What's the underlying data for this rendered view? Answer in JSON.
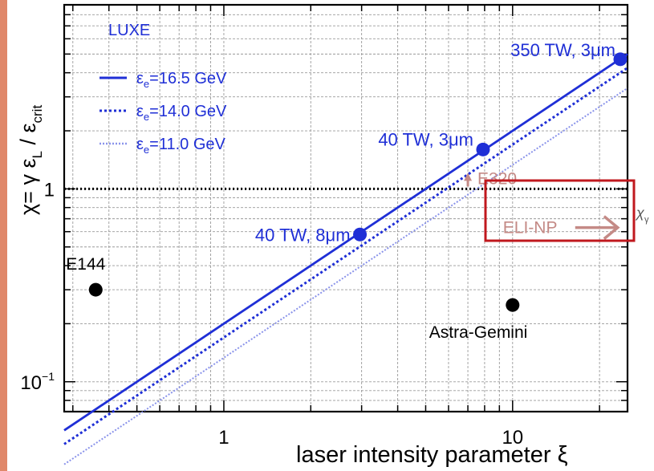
{
  "colors": {
    "frame_left": "#e0886a",
    "series_blue": "#1f2fd6",
    "series_light": "#8a93ea",
    "annotation_rose": "#c48a86",
    "highlight_box": "#c0181e",
    "black": "#000000"
  },
  "chart_data": {
    "type": "line",
    "x_scale": "log",
    "y_scale": "log",
    "xlim": [
      0.28,
      25
    ],
    "ylim": [
      0.07,
      9
    ],
    "grid": true,
    "legend_position": "top-left",
    "xlabel": "laser intensity parameter ξ",
    "ylabel": {
      "main": "χ= γ  ε",
      "sub1": "L",
      "mid": " / ε",
      "sub2": "crit"
    },
    "x_ticks": [
      {
        "value": 1,
        "label": "1"
      },
      {
        "value": 10,
        "label": "10"
      }
    ],
    "y_ticks": [
      {
        "value": 0.1,
        "label": "10",
        "sup": "−1"
      },
      {
        "value": 1,
        "label": "1"
      }
    ],
    "experiment_label": "LUXE",
    "series": [
      {
        "name": "ε_e=16.5 GeV",
        "legend_main": "ε",
        "legend_sub": "e",
        "legend_rest": "=16.5 GeV",
        "style": "solid",
        "color_key": "series_blue",
        "x": [
          0.28,
          25
        ],
        "y": [
          0.056,
          5.0
        ]
      },
      {
        "name": "ε_e=14.0 GeV",
        "legend_main": "ε",
        "legend_sub": "e",
        "legend_rest": "=14.0 GeV",
        "style": "dotted",
        "color_key": "series_blue",
        "x": [
          0.28,
          25
        ],
        "y": [
          0.0475,
          4.24
        ]
      },
      {
        "name": "ε_e=11.0 GeV",
        "legend_main": "ε",
        "legend_sub": "e",
        "legend_rest": "=11.0 GeV",
        "style": "dotted-light",
        "color_key": "series_light",
        "x": [
          0.28,
          25
        ],
        "y": [
          0.0373,
          3.33
        ]
      }
    ],
    "luxe_points": [
      {
        "label": "350 TW, 3μm",
        "x": 23.6,
        "y": 4.7
      },
      {
        "label": "40 TW, 3μm",
        "x": 7.9,
        "y": 1.6
      },
      {
        "label": "40 TW, 8μm",
        "x": 2.96,
        "y": 0.58
      }
    ],
    "other_experiments": [
      {
        "label": "E144",
        "x": 0.36,
        "y": 0.3
      },
      {
        "label": "Astra-Gemini",
        "x": 10.0,
        "y": 0.25
      }
    ],
    "reference_line": {
      "y": 1.0,
      "style": "dotted"
    },
    "annotations": [
      {
        "label": "E320",
        "x": 7.0,
        "y": 1.0,
        "arrow": "up"
      },
      {
        "label": "ELI-NP",
        "x": 10.0,
        "y": 0.63,
        "arrow": "right"
      }
    ],
    "side_label": {
      "main": "χ",
      "sub": "γ"
    }
  }
}
